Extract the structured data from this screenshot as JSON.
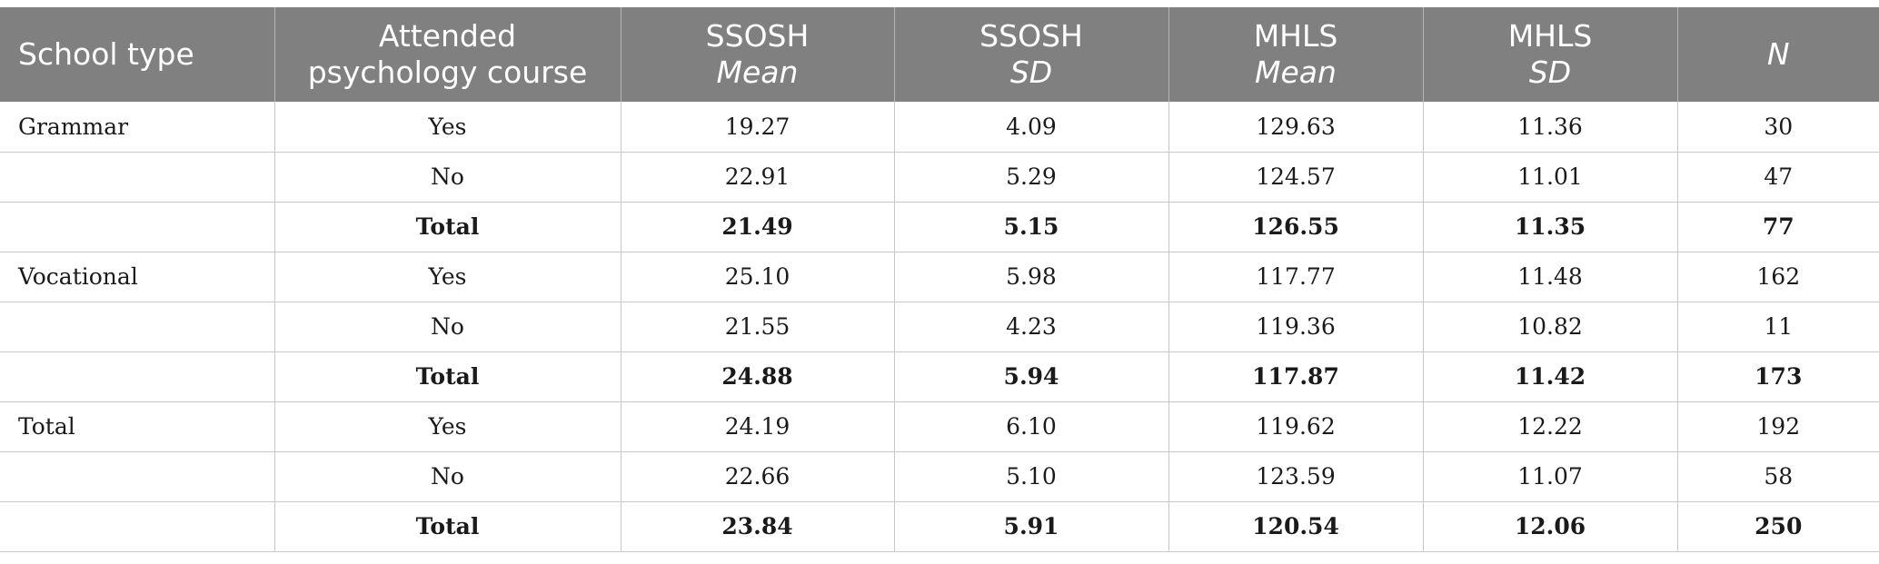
{
  "headers": [
    {
      "line1": "School type",
      "line2": ""
    },
    {
      "line1": "Attended",
      "line2": "psychology course"
    },
    {
      "line1": "SSOSH",
      "line2": "Mean"
    },
    {
      "line1": "SSOSH",
      "line2": "SD"
    },
    {
      "line1": "MHLS",
      "line2": "Mean"
    },
    {
      "line1": "MHLS",
      "line2": "SD"
    },
    {
      "line1": "N",
      "line2": ""
    }
  ],
  "rows": [
    {
      "school": "Grammar",
      "course": "Yes",
      "ssosh_mean": "19.27",
      "ssosh_sd": "4.09",
      "mhls_mean": "129.63",
      "mhls_sd": "11.36",
      "n": "30",
      "is_total": false
    },
    {
      "school": "",
      "course": "No",
      "ssosh_mean": "22.91",
      "ssosh_sd": "5.29",
      "mhls_mean": "124.57",
      "mhls_sd": "11.01",
      "n": "47",
      "is_total": false
    },
    {
      "school": "",
      "course": "Total",
      "ssosh_mean": "21.49",
      "ssosh_sd": "5.15",
      "mhls_mean": "126.55",
      "mhls_sd": "11.35",
      "n": "77",
      "is_total": true
    },
    {
      "school": "Vocational",
      "course": "Yes",
      "ssosh_mean": "25.10",
      "ssosh_sd": "5.98",
      "mhls_mean": "117.77",
      "mhls_sd": "11.48",
      "n": "162",
      "is_total": false
    },
    {
      "school": "",
      "course": "No",
      "ssosh_mean": "21.55",
      "ssosh_sd": "4.23",
      "mhls_mean": "119.36",
      "mhls_sd": "10.82",
      "n": "11",
      "is_total": false
    },
    {
      "school": "",
      "course": "Total",
      "ssosh_mean": "24.88",
      "ssosh_sd": "5.94",
      "mhls_mean": "117.87",
      "mhls_sd": "11.42",
      "n": "173",
      "is_total": true
    },
    {
      "school": "Total",
      "course": "Yes",
      "ssosh_mean": "24.19",
      "ssosh_sd": "6.10",
      "mhls_mean": "119.62",
      "mhls_sd": "12.22",
      "n": "192",
      "is_total": false
    },
    {
      "school": "",
      "course": "No",
      "ssosh_mean": "22.66",
      "ssosh_sd": "5.10",
      "mhls_mean": "123.59",
      "mhls_sd": "11.07",
      "n": "58",
      "is_total": false
    },
    {
      "school": "",
      "course": "Total",
      "ssosh_mean": "23.84",
      "ssosh_sd": "5.91",
      "mhls_mean": "120.54",
      "mhls_sd": "12.06",
      "n": "250",
      "is_total": true
    }
  ],
  "colors": {
    "header_bg": "#808080",
    "header_text": "#ffffff",
    "grid": "#c8c8c8"
  }
}
